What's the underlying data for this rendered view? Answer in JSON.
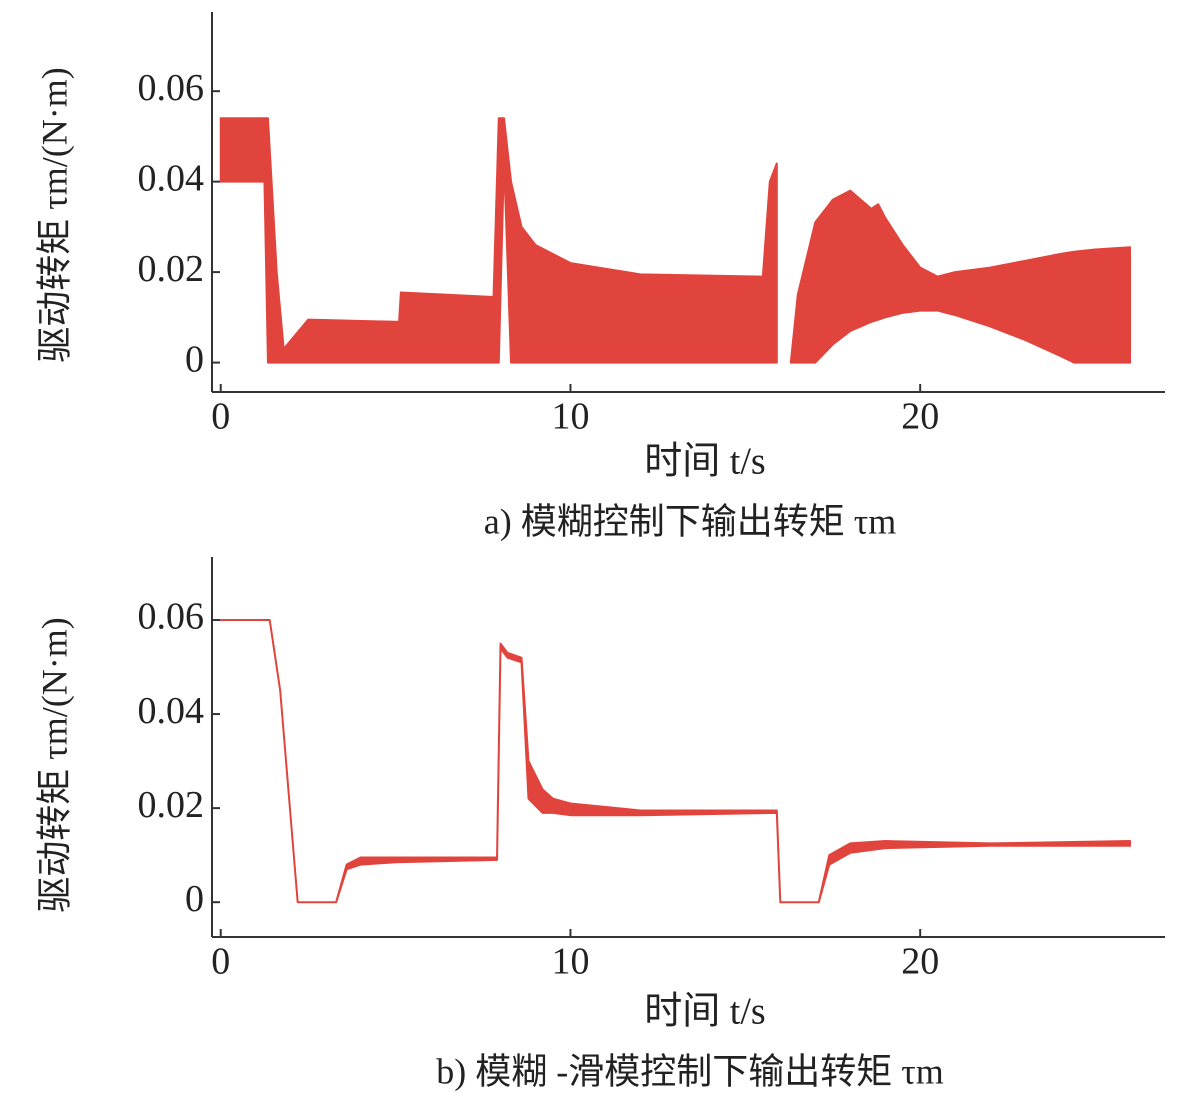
{
  "chart_data": [
    {
      "type": "band",
      "color": "#e03a32",
      "xlabel": "时间 t/s",
      "ylabel": "驱动转矩 τm/(N·m)",
      "caption": "a)   模糊控制下输出转矩 τm",
      "xlim": [
        -0.25,
        27
      ],
      "ylim": [
        -0.0065,
        0.0775
      ],
      "xticks": [
        0,
        10,
        20
      ],
      "yticks": [
        0,
        0.02,
        0.04,
        0.06
      ],
      "x": [
        0,
        1.25,
        1.35,
        1.6,
        1.8,
        2.5,
        5.1,
        5.15,
        7.8,
        7.95,
        8.1,
        8.3,
        8.6,
        9,
        10,
        12,
        15.5,
        15.7,
        15.9,
        16.1,
        16.3,
        16.5,
        17,
        17.5,
        18,
        18.3,
        18.6,
        18.8,
        19,
        19.5,
        20,
        20.5,
        21,
        22,
        23,
        24,
        24.4,
        25,
        26
      ],
      "upper": [
        0.054,
        0.054,
        0.054,
        0.02,
        0.003,
        0.0095,
        0.009,
        0.0155,
        0.0145,
        0.054,
        0.054,
        0.04,
        0.03,
        0.026,
        0.022,
        0.0195,
        0.019,
        0.04,
        0.044,
        null,
        0,
        0.015,
        0.031,
        0.036,
        0.038,
        0.036,
        0.034,
        0.035,
        0.032,
        0.026,
        0.021,
        0.019,
        0.02,
        0.021,
        0.0225,
        0.024,
        0.0245,
        0.025,
        0.0255
      ],
      "lower": [
        0.04,
        0.04,
        0,
        0,
        0,
        0,
        0,
        0,
        0,
        0,
        0.045,
        0,
        0,
        0,
        0,
        0,
        0,
        0,
        0,
        null,
        0,
        0,
        0,
        0.004,
        0.007,
        0.008,
        0.009,
        0.0095,
        0.01,
        0.011,
        0.0115,
        0.0115,
        0.0105,
        0.008,
        0.005,
        0.0015,
        0,
        0,
        0
      ]
    },
    {
      "type": "band",
      "color": "#e03a32",
      "xlabel": "时间 t/s",
      "ylabel": "驱动转矩 τm/(N·m)",
      "caption": "b)   模糊 -滑模控制下输出转矩 τm",
      "xlim": [
        -0.25,
        27
      ],
      "ylim": [
        -0.0074,
        0.0734
      ],
      "xticks": [
        0,
        10,
        20
      ],
      "yticks": [
        0,
        0.02,
        0.04,
        0.06
      ],
      "x": [
        0,
        1.4,
        1.7,
        2.2,
        3.3,
        3.6,
        4,
        5,
        7.9,
        8.0,
        8.2,
        8.6,
        8.8,
        9.2,
        9.5,
        10,
        12,
        15.9,
        16.0,
        17.1,
        17.4,
        18,
        19,
        22,
        26
      ],
      "upper": [
        0.06,
        0.06,
        0.045,
        0,
        0,
        0.008,
        0.0095,
        0.0095,
        0.0095,
        0.055,
        0.053,
        0.052,
        0.03,
        0.024,
        0.022,
        0.021,
        0.0195,
        0.0195,
        0,
        0,
        0.01,
        0.0125,
        0.013,
        0.0125,
        0.013
      ],
      "lower": [
        0.06,
        0.06,
        0.045,
        0,
        0,
        0.007,
        0.008,
        0.0085,
        0.009,
        0.054,
        0.052,
        0.051,
        0.022,
        0.019,
        0.019,
        0.0185,
        0.0185,
        0.019,
        0,
        0,
        0.008,
        0.0105,
        0.0115,
        0.012,
        0.012
      ]
    }
  ]
}
